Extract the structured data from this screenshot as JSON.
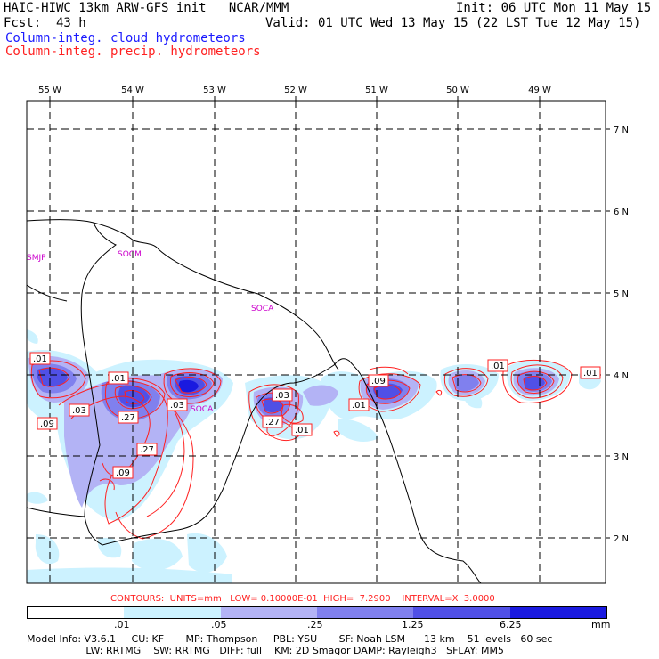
{
  "header": {
    "line1_left": "HAIC-HIWC 13km ARW-GFS init   NCAR/MMM",
    "line1_right": "Init: 06 UTC Mon 11 May 15",
    "line2_left": "Fcst:  43 h",
    "line2_right": "Valid: 01 UTC Wed 13 May 15 (22 LST Tue 12 May 15)",
    "legend_cloud": "Column-integ. cloud hydrometeors",
    "legend_precip": "Column-integ. precip. hydrometeors"
  },
  "colors": {
    "cloud_text": "#1a1aff",
    "precip_text": "#ff2020",
    "shade_lightest": "#ccf2ff",
    "shade_light": "#b3b3f5",
    "shade_mid": "#8080ee",
    "shade_dark": "#5050e6",
    "shade_darkest": "#1a1ae0",
    "contour": "#ff2020",
    "label_place": "#cc00cc"
  },
  "map": {
    "lon_labels": [
      "55 W",
      "54 W",
      "53 W",
      "52 W",
      "51 W",
      "50 W",
      "49 W"
    ],
    "lat_labels": [
      "7 N",
      "6 N",
      "5 N",
      "4 N",
      "3 N",
      "2 N"
    ],
    "place_labels": [
      "SMJP",
      "SOCM",
      "SOCA",
      "SOCA"
    ],
    "contour_labels": [
      ".01",
      ".01",
      ".03",
      ".27",
      ".09",
      ".27",
      ".09",
      ".03",
      ".03",
      ".27",
      ".01",
      ".09",
      ".01",
      ".01",
      ".01"
    ]
  },
  "footer": {
    "contours_line": "CONTOURS:  UNITS=mm   LOW= 0.10000E-01  HIGH=  7.2900    INTERVAL=X  3.0000",
    "scale_ticks": [
      ".01",
      ".05",
      ".25",
      "1.25",
      "6.25"
    ],
    "scale_unit": "mm",
    "model_info_1": "Model Info: V3.6.1     CU: KF       MP: Thompson     PBL: YSU       SF: Noah LSM      13 km    51 levels   60 sec",
    "model_info_2": "                   LW: RRTMG    SW: RRTMG   DIFF: full    KM: 2D Smagor DAMP: Rayleigh3   SFLAY: MM5"
  }
}
